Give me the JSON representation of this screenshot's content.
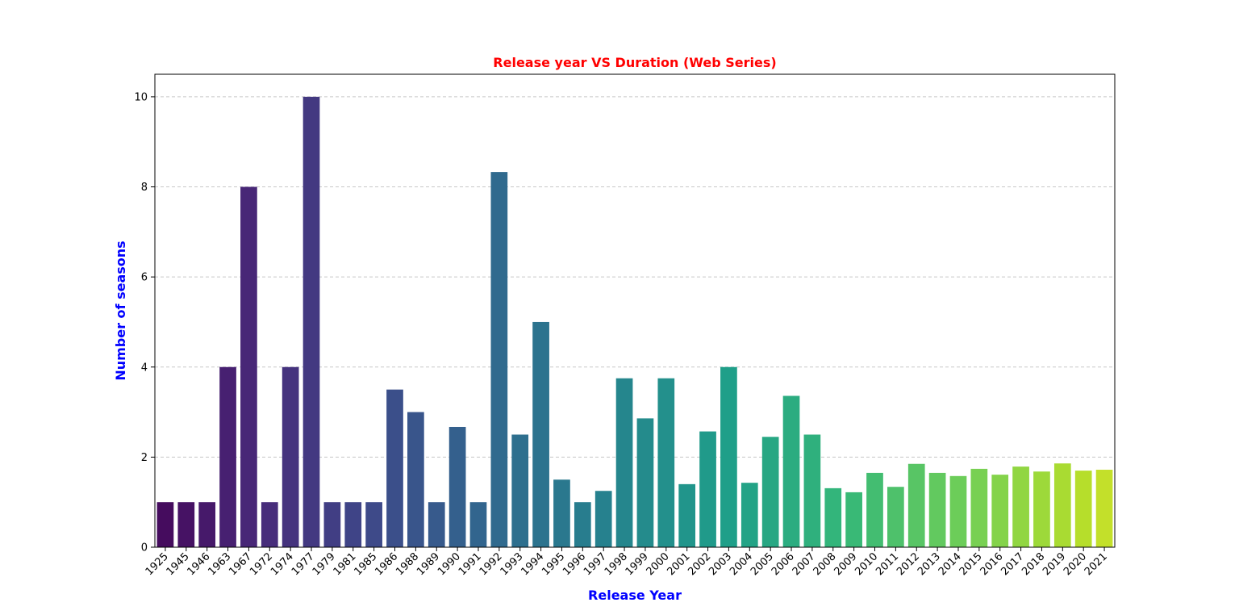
{
  "chart_data": {
    "type": "bar",
    "title": "Release year VS Duration (Web Series)",
    "xlabel": "Release Year",
    "ylabel": "Number of seasons",
    "ylim": [
      0,
      10.5
    ],
    "yticks": [
      0,
      2,
      4,
      6,
      8,
      10
    ],
    "grid": "y-dashed",
    "colors": {
      "title": "#ff0000",
      "axis_label": "#0000ff",
      "grid": "#c8c8c8",
      "palette": [
        "#440154",
        "#482878",
        "#3e4989",
        "#31688e",
        "#26828e",
        "#1f9e89",
        "#35b779",
        "#6ece58",
        "#b5de2b",
        "#fde725"
      ]
    },
    "categories": [
      "1925",
      "1945",
      "1946",
      "1963",
      "1967",
      "1972",
      "1974",
      "1977",
      "1979",
      "1981",
      "1985",
      "1986",
      "1988",
      "1989",
      "1990",
      "1991",
      "1992",
      "1993",
      "1994",
      "1995",
      "1996",
      "1997",
      "1998",
      "1999",
      "2000",
      "2001",
      "2002",
      "2003",
      "2004",
      "2005",
      "2006",
      "2007",
      "2008",
      "2009",
      "2010",
      "2011",
      "2012",
      "2013",
      "2014",
      "2015",
      "2016",
      "2017",
      "2018",
      "2019",
      "2020",
      "2021"
    ],
    "values": [
      1,
      1,
      1,
      4,
      8,
      1,
      4,
      10,
      1,
      1,
      1,
      3.5,
      3,
      1,
      2.67,
      1,
      8.33,
      2.5,
      5,
      1.5,
      1,
      1.25,
      3.75,
      2.86,
      3.75,
      1.4,
      2.57,
      4,
      1.43,
      2.45,
      3.36,
      2.5,
      1.31,
      1.22,
      1.65,
      1.34,
      1.85,
      1.65,
      1.58,
      1.74,
      1.61,
      1.79,
      1.68,
      1.86,
      1.7,
      1.72
    ]
  }
}
